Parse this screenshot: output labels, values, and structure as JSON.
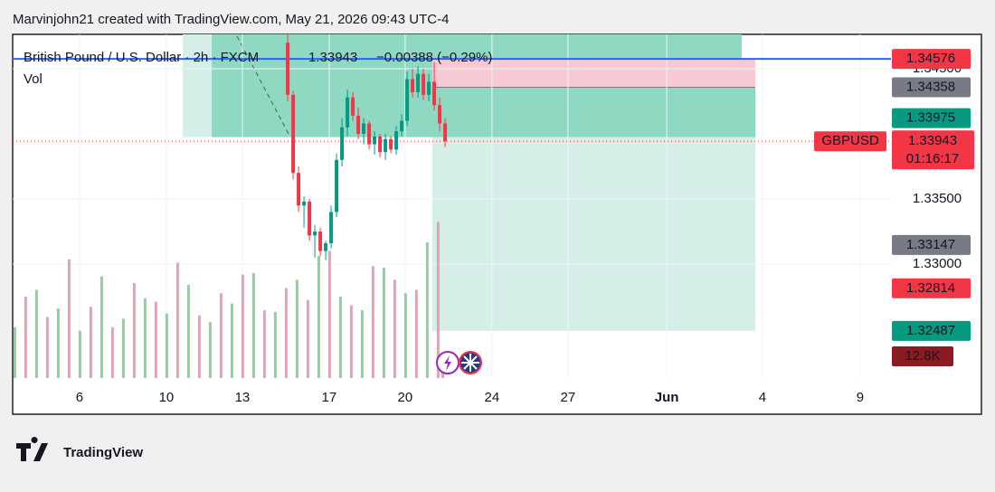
{
  "header": {
    "attribution": "Marvinjohn21 created with TradingView.com, May 21, 2026 09:43 UTC-4"
  },
  "footer": {
    "brand": "TradingView"
  },
  "chart_data": {
    "type": "candlestick",
    "symbol_title": "British Pound / U.S. Dollar · 2h · FXCM",
    "last_price_text": "1.33943",
    "change_text": "−0.00388 (−0.29%)",
    "volume_label": "Vol",
    "ylim": [
      1.32125,
      1.34764
    ],
    "yticks": [
      {
        "value": 1.33,
        "label": "1.33000"
      },
      {
        "value": 1.335,
        "label": "1.33500"
      },
      {
        "value": 1.345,
        "label": "1.34500"
      }
    ],
    "xlim": [
      0,
      40.46
    ],
    "xticks": [
      {
        "value": 3.08,
        "label": "6"
      },
      {
        "value": 7.08,
        "label": "10"
      },
      {
        "value": 10.58,
        "label": "13"
      },
      {
        "value": 14.58,
        "label": "17"
      },
      {
        "value": 18.08,
        "label": "20"
      },
      {
        "value": 22.08,
        "label": "24"
      },
      {
        "value": 25.58,
        "label": "27"
      },
      {
        "value": 30.13,
        "label": "Jun"
      },
      {
        "value": 34.54,
        "label": "4"
      },
      {
        "value": 39.04,
        "label": "9"
      }
    ],
    "up_color": "#089981",
    "down_color": "#f23645",
    "x": [
      12.67,
      12.92,
      13.17,
      13.42,
      13.67,
      13.92,
      14.17,
      14.42,
      14.67,
      14.92,
      15.17,
      15.42,
      15.67,
      15.92,
      16.17,
      16.42,
      16.67,
      16.92,
      17.17,
      17.42,
      17.67,
      17.92,
      18.17,
      18.42,
      18.67,
      18.92,
      19.17,
      19.42,
      19.67,
      19.92
    ],
    "open": [
      1.347,
      1.343,
      1.337,
      1.3345,
      1.3348,
      1.3322,
      1.3325,
      1.331,
      1.3316,
      1.334,
      1.338,
      1.3405,
      1.3428,
      1.3414,
      1.34,
      1.3408,
      1.3392,
      1.3398,
      1.3386,
      1.3396,
      1.3388,
      1.3402,
      1.341,
      1.3442,
      1.3432,
      1.3446,
      1.343,
      1.344,
      1.3422,
      1.3408
    ],
    "high": [
      1.3476,
      1.3433,
      1.3375,
      1.3352,
      1.335,
      1.333,
      1.3328,
      1.3318,
      1.3345,
      1.3385,
      1.3412,
      1.3434,
      1.3432,
      1.342,
      1.3412,
      1.341,
      1.3402,
      1.34,
      1.34,
      1.3398,
      1.3406,
      1.3415,
      1.3448,
      1.345,
      1.3452,
      1.345,
      1.3446,
      1.3455,
      1.3428,
      1.3412
    ],
    "low": [
      1.3425,
      1.3365,
      1.334,
      1.3328,
      1.3318,
      1.3305,
      1.3306,
      1.3303,
      1.3312,
      1.3336,
      1.3375,
      1.3398,
      1.341,
      1.3396,
      1.3392,
      1.3388,
      1.3384,
      1.3382,
      1.338,
      1.3385,
      1.3384,
      1.3398,
      1.3406,
      1.3428,
      1.3428,
      1.3426,
      1.3425,
      1.3418,
      1.3402,
      1.339
    ],
    "close": [
      1.343,
      1.337,
      1.3345,
      1.3348,
      1.3322,
      1.3325,
      1.331,
      1.3316,
      1.334,
      1.338,
      1.3405,
      1.3428,
      1.3414,
      1.34,
      1.3408,
      1.3392,
      1.3398,
      1.3386,
      1.3396,
      1.3388,
      1.3402,
      1.341,
      1.3442,
      1.3432,
      1.3446,
      1.343,
      1.344,
      1.3422,
      1.3408,
      1.33943
    ],
    "volume_ylim": [
      0,
      202700
    ],
    "volume": [
      {
        "color": "#8fd19e",
        "x": [
          0.1,
          1.1,
          2.1,
          3.1,
          4.1,
          5.1,
          6.1,
          7.1,
          8.1,
          9.1,
          10.1,
          11.1,
          12.1,
          13.1,
          14.1,
          15.1,
          16.1,
          17.1,
          18.1,
          19.1
        ],
        "values": [
          30000,
          52000,
          41000,
          28000,
          60000,
          35000,
          47000,
          38000,
          55000,
          33000,
          44000,
          62000,
          39000,
          58000,
          72000,
          48000,
          40000,
          65000,
          50000,
          80000
        ]
      },
      {
        "color": "#e8a1ad",
        "x": [
          0.6,
          1.6,
          2.6,
          3.6,
          4.6,
          5.6,
          6.6,
          7.6,
          8.6,
          9.6,
          10.6,
          11.6,
          12.6,
          13.6,
          14.6,
          15.6,
          16.6,
          17.6,
          18.6,
          19.6
        ],
        "values": [
          48000,
          36000,
          70000,
          42000,
          30000,
          56000,
          45000,
          68000,
          37000,
          50000,
          61000,
          40000,
          53000,
          46000,
          75000,
          43000,
          66000,
          58000,
          52000,
          92000
        ]
      }
    ],
    "last_volume": {
      "value": 12800,
      "label": "12.8K",
      "color": "#8b1a22"
    },
    "zones": [
      {
        "x": [
          7.83,
          33.58
        ],
        "y": [
          1.33975,
          1.34764
        ],
        "color": "#d5efe8"
      },
      {
        "x": [
          9.17,
          33.58
        ],
        "y": [
          1.33975,
          1.34764
        ],
        "color": "#8fd9c3"
      },
      {
        "x": [
          19.33,
          34.21
        ],
        "y": [
          1.34358,
          1.34576
        ],
        "color": "#f7c9d2"
      },
      {
        "x": [
          19.33,
          34.21
        ],
        "y": [
          1.33975,
          1.34358
        ],
        "color": "#8fd9c3"
      },
      {
        "x": [
          19.33,
          34.21
        ],
        "y": [
          1.32487,
          1.33975
        ],
        "color": "#d5efe8"
      }
    ],
    "hline": {
      "value": 1.34576,
      "color": "#2962ff"
    },
    "price_labels": [
      {
        "value": 1.34576,
        "label": "1.34576",
        "color": "#f23645"
      },
      {
        "value": 1.34358,
        "label": "1.34358",
        "color": "#787b86"
      },
      {
        "value": 1.33975,
        "label": "1.33975",
        "color": "#089981"
      },
      {
        "value": 1.33147,
        "label": "1.33147",
        "color": "#787b86"
      },
      {
        "value": 1.32814,
        "label": "1.32814",
        "color": "#f23645"
      },
      {
        "value": 1.32487,
        "label": "1.32487",
        "color": "#089981"
      }
    ],
    "last_label": {
      "value": 1.33943,
      "label": "1.33943",
      "symbol": "GBPUSD",
      "countdown": "01:16:17",
      "color": "#f23645"
    }
  }
}
